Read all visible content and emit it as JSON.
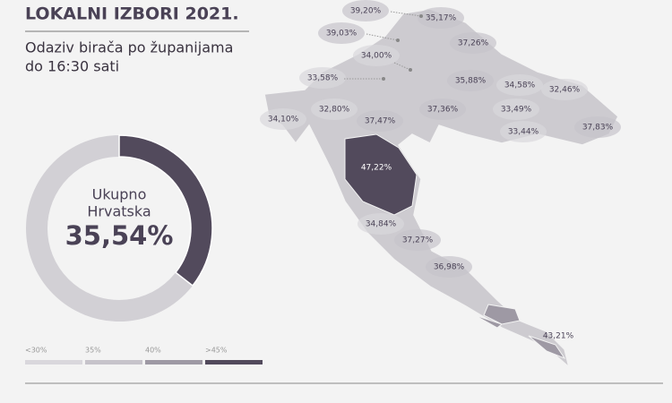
{
  "header": {
    "title": "LOKALNI IZBORI 2021.",
    "subtitle": [
      "Odaziv birača po županijama",
      "do 16:30 sati"
    ]
  },
  "chart_data": {
    "type": "donut",
    "center_label": [
      "Ukupno",
      "Hrvatska"
    ],
    "values": [
      35.54
    ],
    "value_labels": [
      "35,54%"
    ],
    "color": "#524a5c",
    "track_color": "#d2d0d5"
  },
  "map": {
    "legend": [
      {
        "value": 30,
        "label": "<30%",
        "color": "#d9d7dc"
      },
      {
        "value": 35,
        "label": "35%",
        "color": "#c6c3ca"
      },
      {
        "value": 40,
        "label": "40%",
        "color": "#9e99a4"
      },
      {
        "value": 45,
        "label": ">45%",
        "color": "#524a5c"
      }
    ],
    "regions": [
      {
        "label": "39,20%",
        "value": 39.2
      },
      {
        "label": "35,17%",
        "value": 35.17
      },
      {
        "label": "39,03%",
        "value": 39.03
      },
      {
        "label": "37,26%",
        "value": 37.26
      },
      {
        "label": "34,00%",
        "value": 34.0
      },
      {
        "label": "33,58%",
        "value": 33.58
      },
      {
        "label": "35,88%",
        "value": 35.88
      },
      {
        "label": "34,58%",
        "value": 34.58
      },
      {
        "label": "32,46%",
        "value": 32.46
      },
      {
        "label": "34,10%",
        "value": 34.1
      },
      {
        "label": "32,80%",
        "value": 32.8
      },
      {
        "label": "37,47%",
        "value": 37.47
      },
      {
        "label": "37,36%",
        "value": 37.36
      },
      {
        "label": "33,49%",
        "value": 33.49
      },
      {
        "label": "33,44%",
        "value": 33.44
      },
      {
        "label": "37,83%",
        "value": 37.83
      },
      {
        "label": "47,22%",
        "value": 47.22
      },
      {
        "label": "34,84%",
        "value": 34.84
      },
      {
        "label": "37,27%",
        "value": 37.27
      },
      {
        "label": "36,98%",
        "value": 36.98
      },
      {
        "label": "43,21%",
        "value": 43.21
      }
    ]
  }
}
